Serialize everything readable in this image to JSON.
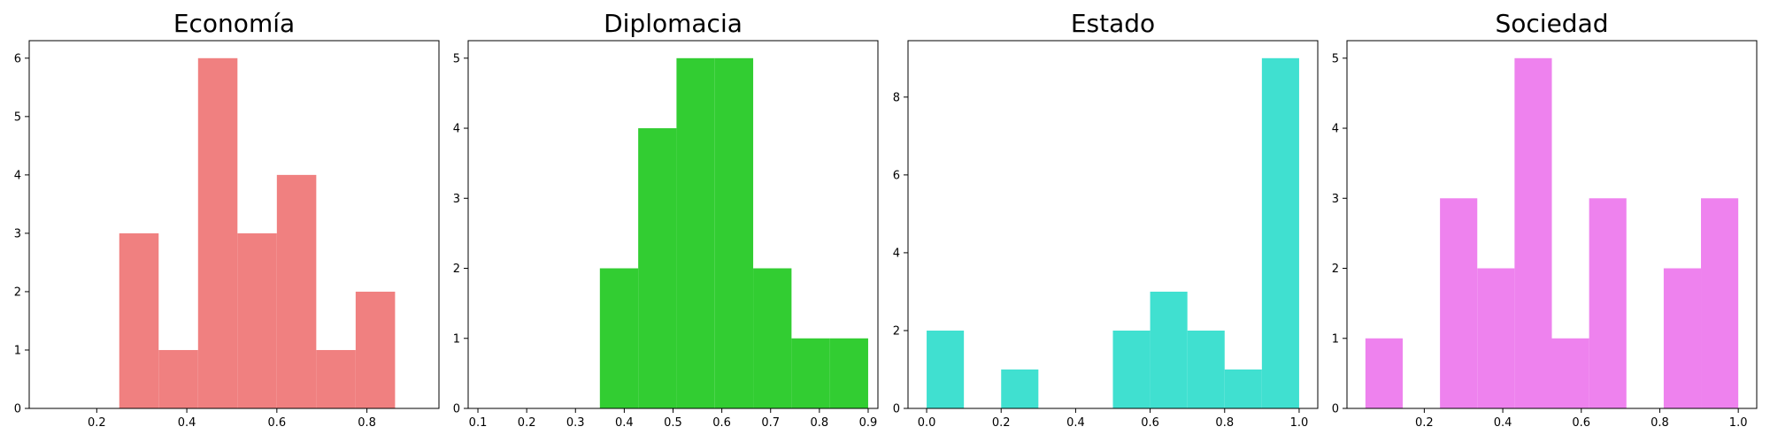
{
  "chart_data": [
    {
      "type": "histogram",
      "title": "Economía",
      "color": "#f08080",
      "xlim": [
        0.05,
        0.96
      ],
      "ylim": [
        0,
        6.3
      ],
      "xticks": [
        0.2,
        0.4,
        0.6,
        0.8
      ],
      "xtick_labels": [
        "0.2",
        "0.4",
        "0.6",
        "0.8"
      ],
      "yticks": [
        0,
        1,
        2,
        3,
        4,
        5,
        6
      ],
      "ytick_labels": [
        "0",
        "1",
        "2",
        "3",
        "4",
        "5",
        "6"
      ],
      "bin_edges": [
        0.25,
        0.3375,
        0.425,
        0.5125,
        0.6,
        0.6875,
        0.775,
        0.8625
      ],
      "counts": [
        3,
        1,
        6,
        3,
        4,
        1,
        2
      ],
      "grid": false
    },
    {
      "type": "histogram",
      "title": "Diplomacia",
      "color": "#32cd32",
      "xlim": [
        0.08,
        0.92
      ],
      "ylim": [
        0,
        5.25
      ],
      "xticks": [
        0.1,
        0.2,
        0.3,
        0.4,
        0.5,
        0.6,
        0.7,
        0.8,
        0.9
      ],
      "xtick_labels": [
        "0.1",
        "0.2",
        "0.3",
        "0.4",
        "0.5",
        "0.6",
        "0.7",
        "0.8",
        "0.9"
      ],
      "yticks": [
        0,
        1,
        2,
        3,
        4,
        5
      ],
      "ytick_labels": [
        "0",
        "1",
        "2",
        "3",
        "4",
        "5"
      ],
      "bin_edges": [
        0.35,
        0.4286,
        0.5071,
        0.5857,
        0.6643,
        0.7429,
        0.8214,
        0.9
      ],
      "counts": [
        2,
        4,
        5,
        5,
        2,
        1,
        1
      ],
      "grid": false
    },
    {
      "type": "histogram",
      "title": "Estado",
      "color": "#40e0d0",
      "xlim": [
        -0.05,
        1.05
      ],
      "ylim": [
        0,
        9.45
      ],
      "xticks": [
        0.0,
        0.2,
        0.4,
        0.6,
        0.8,
        1.0
      ],
      "xtick_labels": [
        "0.0",
        "0.2",
        "0.4",
        "0.6",
        "0.8",
        "1.0"
      ],
      "yticks": [
        0,
        2,
        4,
        6,
        8
      ],
      "ytick_labels": [
        "0",
        "2",
        "4",
        "6",
        "8"
      ],
      "bin_edges": [
        0.0,
        0.1,
        0.2,
        0.3,
        0.4,
        0.5,
        0.6,
        0.7,
        0.8,
        0.9,
        1.0
      ],
      "counts": [
        2,
        0,
        1,
        0,
        0,
        2,
        3,
        2,
        1,
        9
      ],
      "grid": false
    },
    {
      "type": "histogram",
      "title": "Sociedad",
      "color": "#ee82ee",
      "xlim": [
        0.003,
        1.047
      ],
      "ylim": [
        0,
        5.25
      ],
      "xticks": [
        0.2,
        0.4,
        0.6,
        0.8,
        1.0
      ],
      "xtick_labels": [
        "0.2",
        "0.4",
        "0.6",
        "0.8",
        "1.0"
      ],
      "yticks": [
        0,
        1,
        2,
        3,
        4,
        5
      ],
      "ytick_labels": [
        "0",
        "1",
        "2",
        "3",
        "4",
        "5"
      ],
      "bin_edges": [
        0.05,
        0.145,
        0.24,
        0.335,
        0.43,
        0.525,
        0.62,
        0.715,
        0.81,
        0.905,
        1.0
      ],
      "counts": [
        1,
        0,
        3,
        2,
        5,
        1,
        3,
        0,
        2,
        3
      ],
      "grid": false
    }
  ]
}
